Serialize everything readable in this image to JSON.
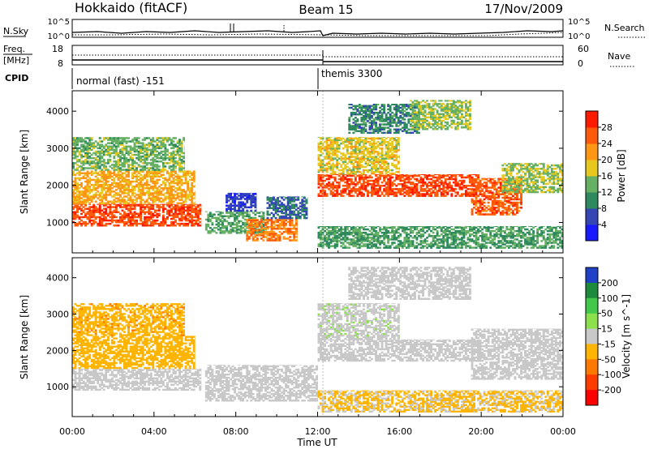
{
  "header": {
    "title": "Hokkaido (fitACF)",
    "beam": "Beam 15",
    "date": "17/Nov/2009"
  },
  "nsky_panel": {
    "left_label": "N.Sky",
    "right_label": "N.Search",
    "left_ticks": [
      "10^5",
      "10^0"
    ],
    "right_ticks": [
      "10^5",
      "10^0"
    ]
  },
  "freq_panel": {
    "left_label_1": "Freq.",
    "left_label_2": "[MHz]",
    "right_label": "Nave",
    "left_ticks": [
      "18",
      "8"
    ],
    "right_ticks": [
      "60",
      "0"
    ]
  },
  "cpid_panel": {
    "label": "CPID",
    "modes": [
      {
        "name": "normal (fast) -151",
        "start_hour": 0
      },
      {
        "name": "themis 3300",
        "start_hour": 12
      }
    ]
  },
  "chart_data": [
    {
      "type": "heatmap",
      "name": "power",
      "xlabel": "Time UT",
      "ylabel": "Slant Range [km]",
      "xlim": [
        0,
        24
      ],
      "ylim": [
        180,
        4550
      ],
      "x_ticks": [
        "00:00",
        "04:00",
        "08:00",
        "12:00",
        "16:00",
        "20:00",
        "00:00"
      ],
      "y_ticks": [
        1000,
        2000,
        3000,
        4000
      ],
      "colorbar": {
        "label": "Power [dB]",
        "ticks": [
          4,
          8,
          12,
          16,
          20,
          24,
          28
        ],
        "colors": [
          "#1a1aff",
          "#3346b4",
          "#2e8a5e",
          "#66b064",
          "#e6c81e",
          "#ff9614",
          "#ff5a0a",
          "#ff1a00"
        ]
      },
      "regions": [
        {
          "t0": 0.0,
          "t1": 6.3,
          "r0": 900,
          "r1": 1500,
          "value": 27
        },
        {
          "t0": 0.0,
          "t1": 6.0,
          "r0": 1500,
          "r1": 2400,
          "value": 21
        },
        {
          "t0": 0.0,
          "t1": 5.5,
          "r0": 2400,
          "r1": 3300,
          "value": 14
        },
        {
          "t0": 6.5,
          "t1": 9.5,
          "r0": 700,
          "r1": 1300,
          "value": 13
        },
        {
          "t0": 7.5,
          "t1": 9.0,
          "r0": 1300,
          "r1": 1800,
          "value": 5
        },
        {
          "t0": 8.5,
          "t1": 11.0,
          "r0": 500,
          "r1": 1100,
          "value": 24
        },
        {
          "t0": 9.5,
          "t1": 11.5,
          "r0": 1100,
          "r1": 1700,
          "value": 8
        },
        {
          "t0": 12.0,
          "t1": 20.0,
          "r0": 1700,
          "r1": 2300,
          "value": 27
        },
        {
          "t0": 12.0,
          "t1": 16.0,
          "r0": 2300,
          "r1": 3300,
          "value": 18
        },
        {
          "t0": 13.5,
          "t1": 17.0,
          "r0": 3400,
          "r1": 4200,
          "value": 10
        },
        {
          "t0": 16.5,
          "t1": 19.5,
          "r0": 3500,
          "r1": 4300,
          "value": 15
        },
        {
          "t0": 19.5,
          "t1": 22.0,
          "r0": 1200,
          "r1": 2200,
          "value": 26
        },
        {
          "t0": 21.0,
          "t1": 24.0,
          "r0": 1800,
          "r1": 2600,
          "value": 16
        },
        {
          "t0": 12.0,
          "t1": 24.0,
          "r0": 300,
          "r1": 900,
          "value": 12
        }
      ]
    },
    {
      "type": "heatmap",
      "name": "velocity",
      "xlabel": "Time UT",
      "ylabel": "Slant Range [km]",
      "xlim": [
        0,
        24
      ],
      "ylim": [
        180,
        4550
      ],
      "x_ticks": [
        "00:00",
        "04:00",
        "08:00",
        "12:00",
        "16:00",
        "20:00",
        "00:00"
      ],
      "y_ticks": [
        1000,
        2000,
        3000,
        4000
      ],
      "colorbar": {
        "label": "Velocity [m s^-1]",
        "ticks": [
          200,
          100,
          50,
          15,
          -15,
          -50,
          -100,
          -200
        ],
        "colors": [
          "#2040c8",
          "#1c8c3c",
          "#42c84a",
          "#8ce04c",
          "#c8c8c8",
          "#ffb400",
          "#ff7800",
          "#ff3c00",
          "#ff0000"
        ]
      },
      "regions": [
        {
          "t0": 0.0,
          "t1": 6.3,
          "r0": 900,
          "r1": 1500,
          "value": 0
        },
        {
          "t0": 0.0,
          "t1": 6.0,
          "r0": 1500,
          "r1": 2400,
          "value": -30
        },
        {
          "t0": 0.0,
          "t1": 5.5,
          "r0": 2400,
          "r1": 3300,
          "value": -40
        },
        {
          "t0": 6.5,
          "t1": 12.0,
          "r0": 600,
          "r1": 1600,
          "value": 0
        },
        {
          "t0": 12.0,
          "t1": 20.0,
          "r0": 1700,
          "r1": 2300,
          "value": 0
        },
        {
          "t0": 12.0,
          "t1": 16.0,
          "r0": 2300,
          "r1": 3300,
          "value": 5
        },
        {
          "t0": 13.5,
          "t1": 19.5,
          "r0": 3400,
          "r1": 4300,
          "value": 0
        },
        {
          "t0": 19.5,
          "t1": 24.0,
          "r0": 1200,
          "r1": 2600,
          "value": 0
        },
        {
          "t0": 12.0,
          "t1": 24.0,
          "r0": 300,
          "r1": 900,
          "value": -20
        }
      ]
    }
  ]
}
